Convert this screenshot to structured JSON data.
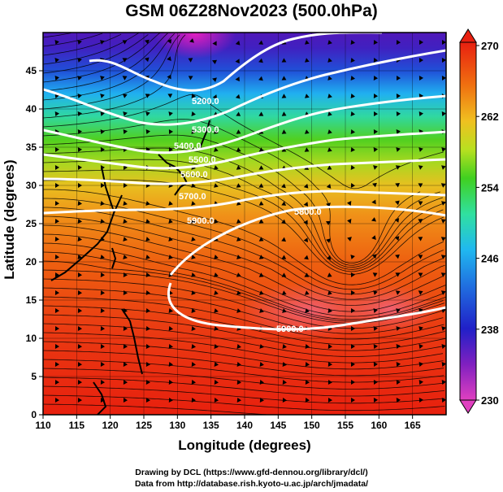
{
  "title": "GSM 06Z28Nov2023 (500.0hPa)",
  "axes": {
    "xlabel": "Longitude (degrees)",
    "ylabel": "Latitude  (degrees)",
    "x_ticks": [
      "110",
      "115",
      "120",
      "125",
      "130",
      "135",
      "140",
      "145",
      "150",
      "155",
      "160",
      "165"
    ],
    "y_ticks": [
      "0",
      "5",
      "10",
      "15",
      "20",
      "25",
      "30",
      "35",
      "40",
      "45"
    ],
    "xlim": [
      110,
      170
    ],
    "ylim": [
      0,
      50
    ]
  },
  "colorbar": {
    "labels": [
      "270",
      "262",
      "254",
      "246",
      "238",
      "230"
    ],
    "range": [
      230,
      270
    ],
    "colors": [
      "#e040c0",
      "#2020c8",
      "#20a8f0",
      "#30e0a0",
      "#40d020",
      "#b8e020",
      "#f0c020",
      "#f07010",
      "#e82010"
    ]
  },
  "contours": {
    "unit": "m",
    "labels": [
      "5200.0",
      "5300.0",
      "5400.0",
      "5500.0",
      "5600.0",
      "5700.0",
      "5800.0",
      "5900.0",
      "5900.0"
    ]
  },
  "credits": {
    "line1": "Drawing by DCL (https://www.gfd-dennou.org/library/dcl/)",
    "line2": "Data from http://database.rish.kyoto-u.ac.jp/arch/jmadata/"
  }
}
